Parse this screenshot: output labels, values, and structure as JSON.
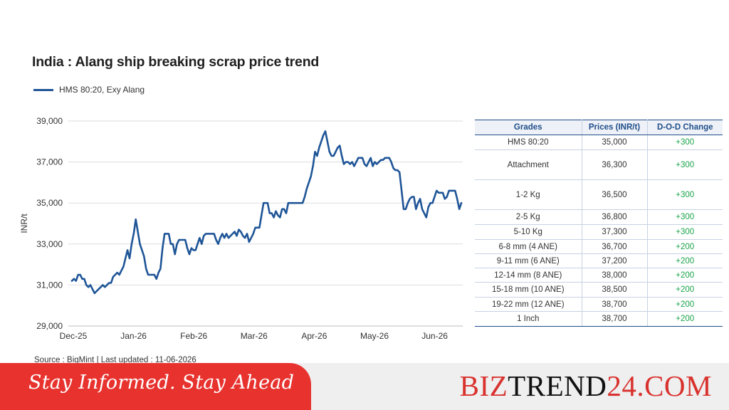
{
  "chart_data": {
    "type": "line",
    "title": "India : Alang ship breaking scrap price trend",
    "ylabel": "INR/t",
    "ylim": [
      29000,
      39000
    ],
    "yticks": [
      "29,000",
      "31,000",
      "33,000",
      "35,000",
      "37,000",
      "39,000"
    ],
    "ytick_values": [
      29000,
      31000,
      33000,
      35000,
      37000,
      39000
    ],
    "xticks": [
      "Dec-25",
      "Jan-26",
      "Feb-26",
      "Mar-26",
      "Apr-26",
      "May-26",
      "Jun-26"
    ],
    "grid": "horizontal",
    "legend_position": "top-left",
    "series": [
      {
        "name": "HMS 80:20, Exy Alang",
        "color": "#1f5597",
        "values": [
          31200,
          31300,
          31200,
          31500,
          31500,
          31300,
          31300,
          31000,
          30900,
          31000,
          30800,
          30600,
          30700,
          30800,
          30900,
          31000,
          30900,
          31000,
          31100,
          31100,
          31400,
          31500,
          31600,
          31500,
          31700,
          31900,
          32300,
          32700,
          32300,
          33000,
          33500,
          34200,
          33600,
          33000,
          32700,
          32400,
          31800,
          31500,
          31500,
          31500,
          31500,
          31300,
          31600,
          31800,
          32800,
          33500,
          33500,
          33500,
          33000,
          33000,
          32500,
          33000,
          33200,
          33200,
          33200,
          33200,
          32800,
          32500,
          32800,
          32700,
          32700,
          33000,
          33300,
          33000,
          33400,
          33500,
          33500,
          33500,
          33500,
          33500,
          33200,
          33000,
          33300,
          33500,
          33300,
          33500,
          33300,
          33400,
          33500,
          33600,
          33400,
          33700,
          33600,
          33400,
          33300,
          33500,
          33100,
          33300,
          33500,
          33800,
          33800,
          33800,
          34400,
          35000,
          35000,
          35000,
          34500,
          34500,
          34300,
          34600,
          34400,
          34300,
          34700,
          34700,
          34500,
          35000,
          35000,
          35000,
          35000,
          35000,
          35000,
          35000,
          35000,
          35300,
          35700,
          36000,
          36300,
          36800,
          37500,
          37300,
          37700,
          38000,
          38300,
          38500,
          38000,
          37500,
          37300,
          37300,
          37500,
          37700,
          37800,
          37300,
          36900,
          37000,
          37000,
          36900,
          37000,
          36800,
          37000,
          37200,
          37200,
          37200,
          36900,
          36800,
          37000,
          37200,
          36800,
          37000,
          36900,
          37000,
          37100,
          37100,
          37200,
          37200,
          37200,
          37000,
          36700,
          36600,
          36600,
          36500,
          35600,
          34700,
          34700,
          35000,
          35200,
          35300,
          35300,
          34700,
          35000,
          35200,
          34700,
          34500,
          34300,
          34800,
          35000,
          35000,
          35300,
          35600,
          35500,
          35500,
          35500,
          35200,
          35300,
          35600,
          35600,
          35600,
          35600,
          35200,
          34700,
          35000
        ]
      }
    ]
  },
  "table": {
    "headers": [
      "Grades",
      "Prices (INR/t)",
      "D-O-D Change"
    ],
    "rows": [
      {
        "grade": "HMS 80:20",
        "price": "35,000",
        "change": "+300"
      },
      {
        "grade": "Attachment",
        "price": "36,300",
        "change": "+300"
      },
      {
        "grade": "1-2 Kg",
        "price": "36,500",
        "change": "+300"
      },
      {
        "grade": "2-5 Kg",
        "price": "36,800",
        "change": "+300"
      },
      {
        "grade": "5-10 Kg",
        "price": "37,300",
        "change": "+300"
      },
      {
        "grade": "6-8 mm (4 ANE)",
        "price": "36,700",
        "change": "+200"
      },
      {
        "grade": "9-11 mm (6 ANE)",
        "price": "37,200",
        "change": "+200"
      },
      {
        "grade": "12-14 mm (8 ANE)",
        "price": "38,000",
        "change": "+200"
      },
      {
        "grade": "15-18 mm (10 ANE)",
        "price": "38,500",
        "change": "+200"
      },
      {
        "grade": "19-22 mm (12 ANE)",
        "price": "38,700",
        "change": "+200"
      },
      {
        "grade": "1 Inch",
        "price": "38,700",
        "change": "+200"
      }
    ]
  },
  "source": "Source : BigMint | Last updated : 11-06-2026",
  "banner": {
    "tagline": "Stay Informed. Stay Ahead",
    "brand_part1": "BIZ",
    "brand_part2": "TREND",
    "brand_part3": "24.COM"
  },
  "colors": {
    "line": "#1f5597",
    "table_header_text": "#1f4e8a",
    "positive_change": "#1aa34a",
    "banner_red": "#e7322e"
  }
}
